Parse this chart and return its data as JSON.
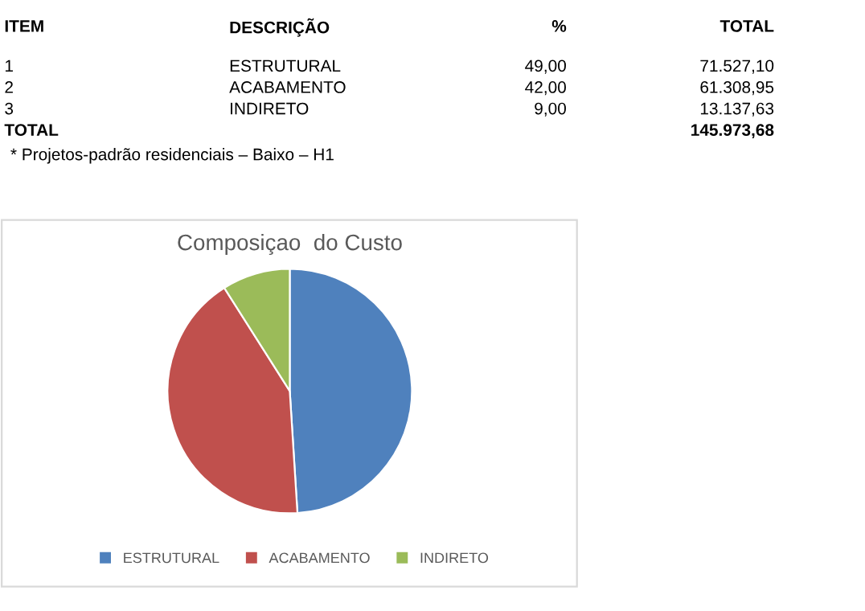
{
  "chart_data": {
    "type": "pie",
    "title": "Composiçao  do Custo",
    "categories": [
      "ESTRUTURAL",
      "ACABAMENTO",
      "INDIRETO"
    ],
    "values": [
      49,
      42,
      9
    ],
    "colors": [
      "#4f81bd",
      "#c0504d",
      "#9bbb59"
    ],
    "legend": "bottom",
    "annotations": [
      "ITEM",
      "DESCRIÇÃO",
      "%",
      "TOTAL",
      "1",
      "ESTRUTURAL",
      "49,00",
      "71.527,10",
      "2",
      "ACABAMENTO",
      "42,00",
      "61.308,95",
      "3",
      "INDIRETO",
      "9,00",
      "13.137,63",
      "TOTAL",
      "145.973,68",
      "* Projetos-padrão residenciais – Baixo – H1"
    ]
  }
}
